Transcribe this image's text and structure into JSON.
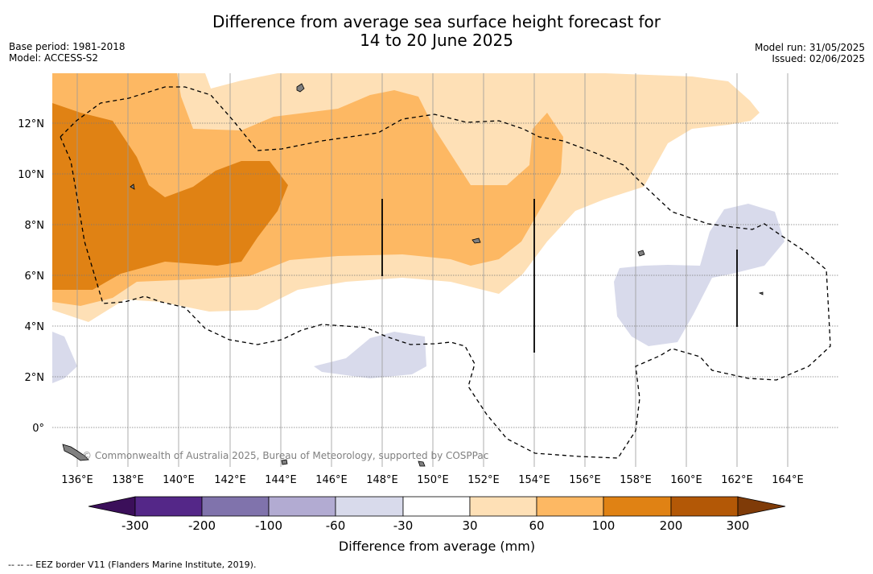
{
  "title_line1": "Difference from average sea surface height forecast for",
  "title_line2": "14 to 20 June 2025",
  "base_period": "Base period: 1981-2018",
  "model": "Model: ACCESS-S2",
  "model_run": "Model run: 31/05/2025",
  "issued": "Issued: 02/06/2025",
  "copyright": "© Commonwealth of Australia 2025, Bureau of Meteorology, supported by COSPPac",
  "lon_labels": [
    "136°E",
    "138°E",
    "140°E",
    "142°E",
    "144°E",
    "146°E",
    "148°E",
    "150°E",
    "152°E",
    "154°E",
    "156°E",
    "158°E",
    "160°E",
    "162°E",
    "164°E"
  ],
  "lat_labels": [
    "12°N",
    "10°N",
    "8°N",
    "6°N",
    "4°N",
    "2°N",
    "0°"
  ],
  "colorbar": {
    "title": "Difference from average (mm)",
    "ticks": [
      "-300",
      "-200",
      "-100",
      "-60",
      "-30",
      "30",
      "60",
      "100",
      "200",
      "300"
    ],
    "colors": {
      "under": "#3b0f5a",
      "b1": "#542788",
      "b2": "#8073ac",
      "b3": "#b2abd2",
      "b4": "#d8daeb",
      "b5": "#ffffff",
      "b6": "#fee0b6",
      "b7": "#fdb863",
      "b8": "#e08214",
      "b9": "#b35806",
      "over": "#7f3b08"
    }
  },
  "footer": "-- -- -- EEZ border V11 (Flanders Marine Institute, 2019)."
}
